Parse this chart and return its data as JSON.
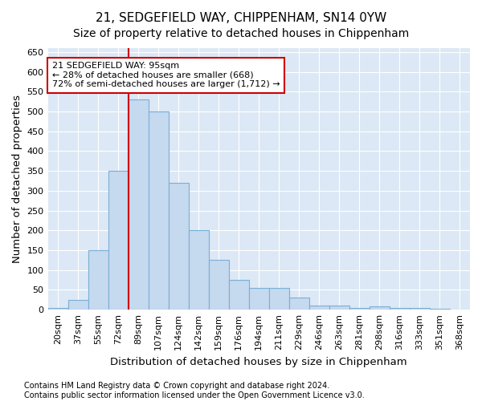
{
  "title": "21, SEDGEFIELD WAY, CHIPPENHAM, SN14 0YW",
  "subtitle": "Size of property relative to detached houses in Chippenham",
  "xlabel": "Distribution of detached houses by size in Chippenham",
  "ylabel": "Number of detached properties",
  "footer_lines": [
    "Contains HM Land Registry data © Crown copyright and database right 2024.",
    "Contains public sector information licensed under the Open Government Licence v3.0."
  ],
  "bin_labels": [
    "20sqm",
    "37sqm",
    "55sqm",
    "72sqm",
    "89sqm",
    "107sqm",
    "124sqm",
    "142sqm",
    "159sqm",
    "176sqm",
    "194sqm",
    "211sqm",
    "229sqm",
    "246sqm",
    "263sqm",
    "281sqm",
    "298sqm",
    "316sqm",
    "333sqm",
    "351sqm",
    "368sqm"
  ],
  "bar_values": [
    5,
    25,
    150,
    350,
    530,
    500,
    320,
    200,
    125,
    75,
    55,
    55,
    30,
    10,
    10,
    5,
    8,
    5,
    5,
    2,
    0
  ],
  "bar_color": "#c5d9ef",
  "bar_edge_color": "#7aafd4",
  "vline_position": 4,
  "vline_color": "#cc0000",
  "annotation_text": "21 SEDGEFIELD WAY: 95sqm\n← 28% of detached houses are smaller (668)\n72% of semi-detached houses are larger (1,712) →",
  "annotation_box_color": "white",
  "annotation_box_edge_color": "#cc0000",
  "ylim": [
    0,
    660
  ],
  "yticks": [
    0,
    50,
    100,
    150,
    200,
    250,
    300,
    350,
    400,
    450,
    500,
    550,
    600,
    650
  ],
  "background_color": "#dce8f5",
  "grid_color": "white",
  "title_fontsize": 11,
  "subtitle_fontsize": 10,
  "axis_label_fontsize": 9.5,
  "tick_fontsize": 8,
  "annotation_fontsize": 8,
  "footer_fontsize": 7
}
